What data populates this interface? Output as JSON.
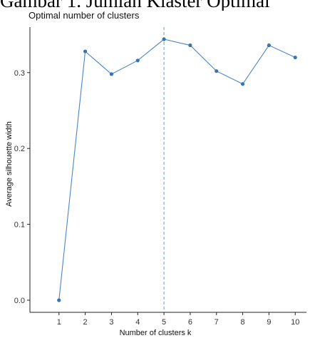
{
  "document": {
    "caption": "Gambar 1. Jumlah Klaster Optimal"
  },
  "chart_data": {
    "type": "line",
    "title": "Optimal number of clusters",
    "xlabel": "Number of clusters k",
    "ylabel": "Average silhouette width",
    "categories": [
      "1",
      "2",
      "3",
      "4",
      "5",
      "6",
      "7",
      "8",
      "9",
      "10"
    ],
    "values": [
      0.0,
      0.328,
      0.298,
      0.316,
      0.344,
      0.336,
      0.302,
      0.285,
      0.336,
      0.32
    ],
    "yticks": [
      "0.0",
      "0.1",
      "0.2",
      "0.3"
    ],
    "ylim": [
      -0.016,
      0.36
    ],
    "optimal_k": 5,
    "grid": false,
    "line_color": "#4a86c6",
    "marker_color": "#3a73b4",
    "vline_color": "#5b9bd5"
  }
}
